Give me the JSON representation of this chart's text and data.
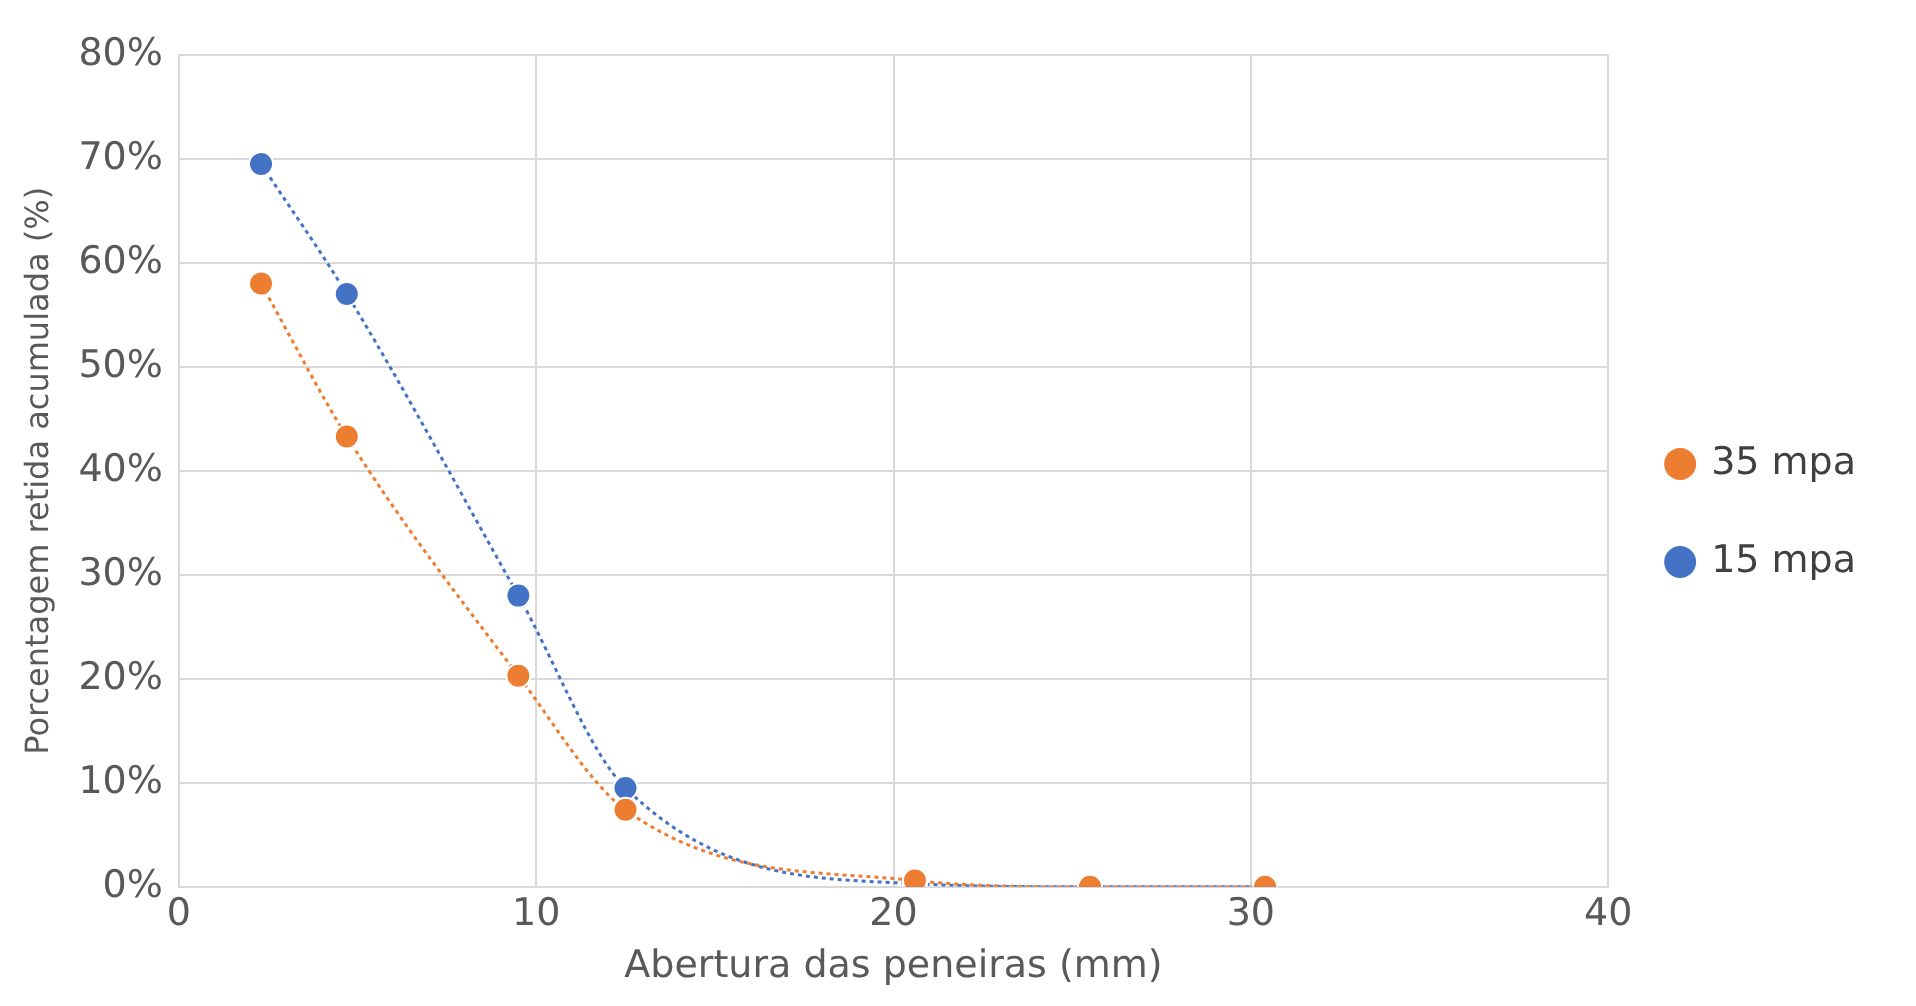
{
  "chart_data": {
    "type": "line",
    "xlabel": "Abertura das peneiras (mm)",
    "ylabel": "Porcentagem retida acumulada (%)",
    "xlim": [
      0,
      40
    ],
    "xticks": [
      0,
      10,
      20,
      30,
      40
    ],
    "ylim": [
      0,
      80
    ],
    "yticks": [
      {
        "value": 0,
        "label": "0%"
      },
      {
        "value": 10,
        "label": "10%"
      },
      {
        "value": 20,
        "label": "20%"
      },
      {
        "value": 30,
        "label": "30%"
      },
      {
        "value": 40,
        "label": "40%"
      },
      {
        "value": 50,
        "label": "50%"
      },
      {
        "value": 60,
        "label": "60%"
      },
      {
        "value": 70,
        "label": "70%"
      },
      {
        "value": 80,
        "label": "80%"
      }
    ],
    "x": [
      2.3,
      4.7,
      9.5,
      12.5,
      20.6,
      25.5,
      30.4
    ],
    "grid": true,
    "legend": "right",
    "marker": "circle",
    "line_style": "dotted",
    "series": [
      {
        "name": "15 mpa",
        "color": "#4472c4",
        "values": [
          69.5,
          57,
          28,
          9.5,
          0.3,
          0,
          0
        ]
      },
      {
        "name": "35 mpa",
        "color": "#ed7d31",
        "values": [
          58,
          43.3,
          20.3,
          7.4,
          0.6,
          0,
          0
        ]
      }
    ]
  }
}
